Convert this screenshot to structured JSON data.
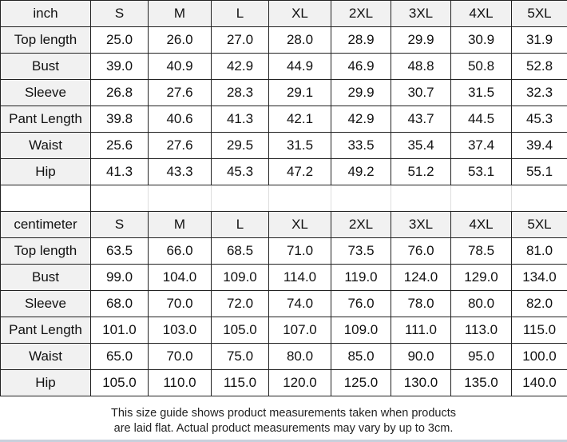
{
  "tables": [
    {
      "unit": "inch",
      "sizes": [
        "S",
        "M",
        "L",
        "XL",
        "2XL",
        "3XL",
        "4XL",
        "5XL"
      ],
      "rows": [
        {
          "label": "Top length",
          "values": [
            "25.0",
            "26.0",
            "27.0",
            "28.0",
            "28.9",
            "29.9",
            "30.9",
            "31.9"
          ]
        },
        {
          "label": "Bust",
          "values": [
            "39.0",
            "40.9",
            "42.9",
            "44.9",
            "46.9",
            "48.8",
            "50.8",
            "52.8"
          ]
        },
        {
          "label": "Sleeve",
          "values": [
            "26.8",
            "27.6",
            "28.3",
            "29.1",
            "29.9",
            "30.7",
            "31.5",
            "32.3"
          ]
        },
        {
          "label": "Pant Length",
          "values": [
            "39.8",
            "40.6",
            "41.3",
            "42.1",
            "42.9",
            "43.7",
            "44.5",
            "45.3"
          ]
        },
        {
          "label": "Waist",
          "values": [
            "25.6",
            "27.6",
            "29.5",
            "31.5",
            "33.5",
            "35.4",
            "37.4",
            "39.4"
          ]
        },
        {
          "label": "Hip",
          "values": [
            "41.3",
            "43.3",
            "45.3",
            "47.2",
            "49.2",
            "51.2",
            "53.1",
            "55.1"
          ]
        }
      ]
    },
    {
      "unit": "centimeter",
      "sizes": [
        "S",
        "M",
        "L",
        "XL",
        "2XL",
        "3XL",
        "4XL",
        "5XL"
      ],
      "rows": [
        {
          "label": "Top length",
          "values": [
            "63.5",
            "66.0",
            "68.5",
            "71.0",
            "73.5",
            "76.0",
            "78.5",
            "81.0"
          ]
        },
        {
          "label": "Bust",
          "values": [
            "99.0",
            "104.0",
            "109.0",
            "114.0",
            "119.0",
            "124.0",
            "129.0",
            "134.0"
          ]
        },
        {
          "label": "Sleeve",
          "values": [
            "68.0",
            "70.0",
            "72.0",
            "74.0",
            "76.0",
            "78.0",
            "80.0",
            "82.0"
          ]
        },
        {
          "label": "Pant Length",
          "values": [
            "101.0",
            "103.0",
            "105.0",
            "107.0",
            "109.0",
            "111.0",
            "113.0",
            "115.0"
          ]
        },
        {
          "label": "Waist",
          "values": [
            "65.0",
            "70.0",
            "75.0",
            "80.0",
            "85.0",
            "90.0",
            "95.0",
            "100.0"
          ]
        },
        {
          "label": "Hip",
          "values": [
            "105.0",
            "110.0",
            "115.0",
            "120.0",
            "125.0",
            "130.0",
            "135.0",
            "140.0"
          ]
        }
      ]
    }
  ],
  "note": {
    "line1": "This size guide shows product measurements taken when products",
    "line2": "are laid flat. Actual product measurements may vary by up to 3cm."
  }
}
